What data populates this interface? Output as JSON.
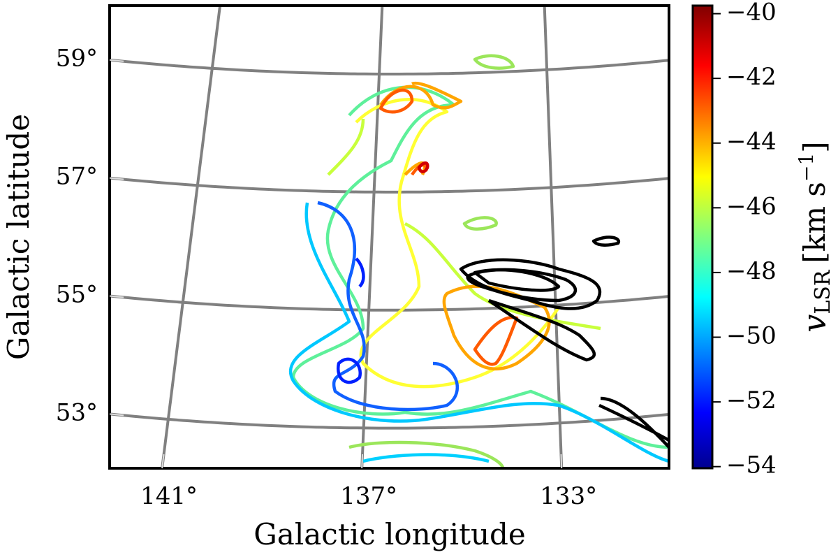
{
  "chart_data": {
    "type": "contour",
    "xlabel": "Galactic longitude",
    "ylabel": "Galactic latitude",
    "xlim": [
      142.05,
      130.85
    ],
    "ylim": [
      52.06,
      59.9
    ],
    "xticks": [
      {
        "value": 141,
        "label": "141°"
      },
      {
        "value": 137,
        "label": "137°"
      },
      {
        "value": 133,
        "label": "133°"
      }
    ],
    "yticks": [
      {
        "value": 59,
        "label": "59°"
      },
      {
        "value": 57,
        "label": "57°"
      },
      {
        "value": 55,
        "label": "55°"
      },
      {
        "value": 53,
        "label": "53°"
      }
    ],
    "grid": true,
    "colorbar": {
      "label": [
        "v",
        "LSR",
        "[km s",
        "−1",
        "]"
      ],
      "clim": [
        -54.05,
        -39.75
      ],
      "ticks": [
        {
          "value": -40,
          "label": "−40"
        },
        {
          "value": -42,
          "label": "−42"
        },
        {
          "value": -44,
          "label": "−44"
        },
        {
          "value": -46,
          "label": "−46"
        },
        {
          "value": -48,
          "label": "−48"
        },
        {
          "value": -50,
          "label": "−50"
        },
        {
          "value": -52,
          "label": "−52"
        },
        {
          "value": -54,
          "label": "−54"
        }
      ]
    }
  }
}
